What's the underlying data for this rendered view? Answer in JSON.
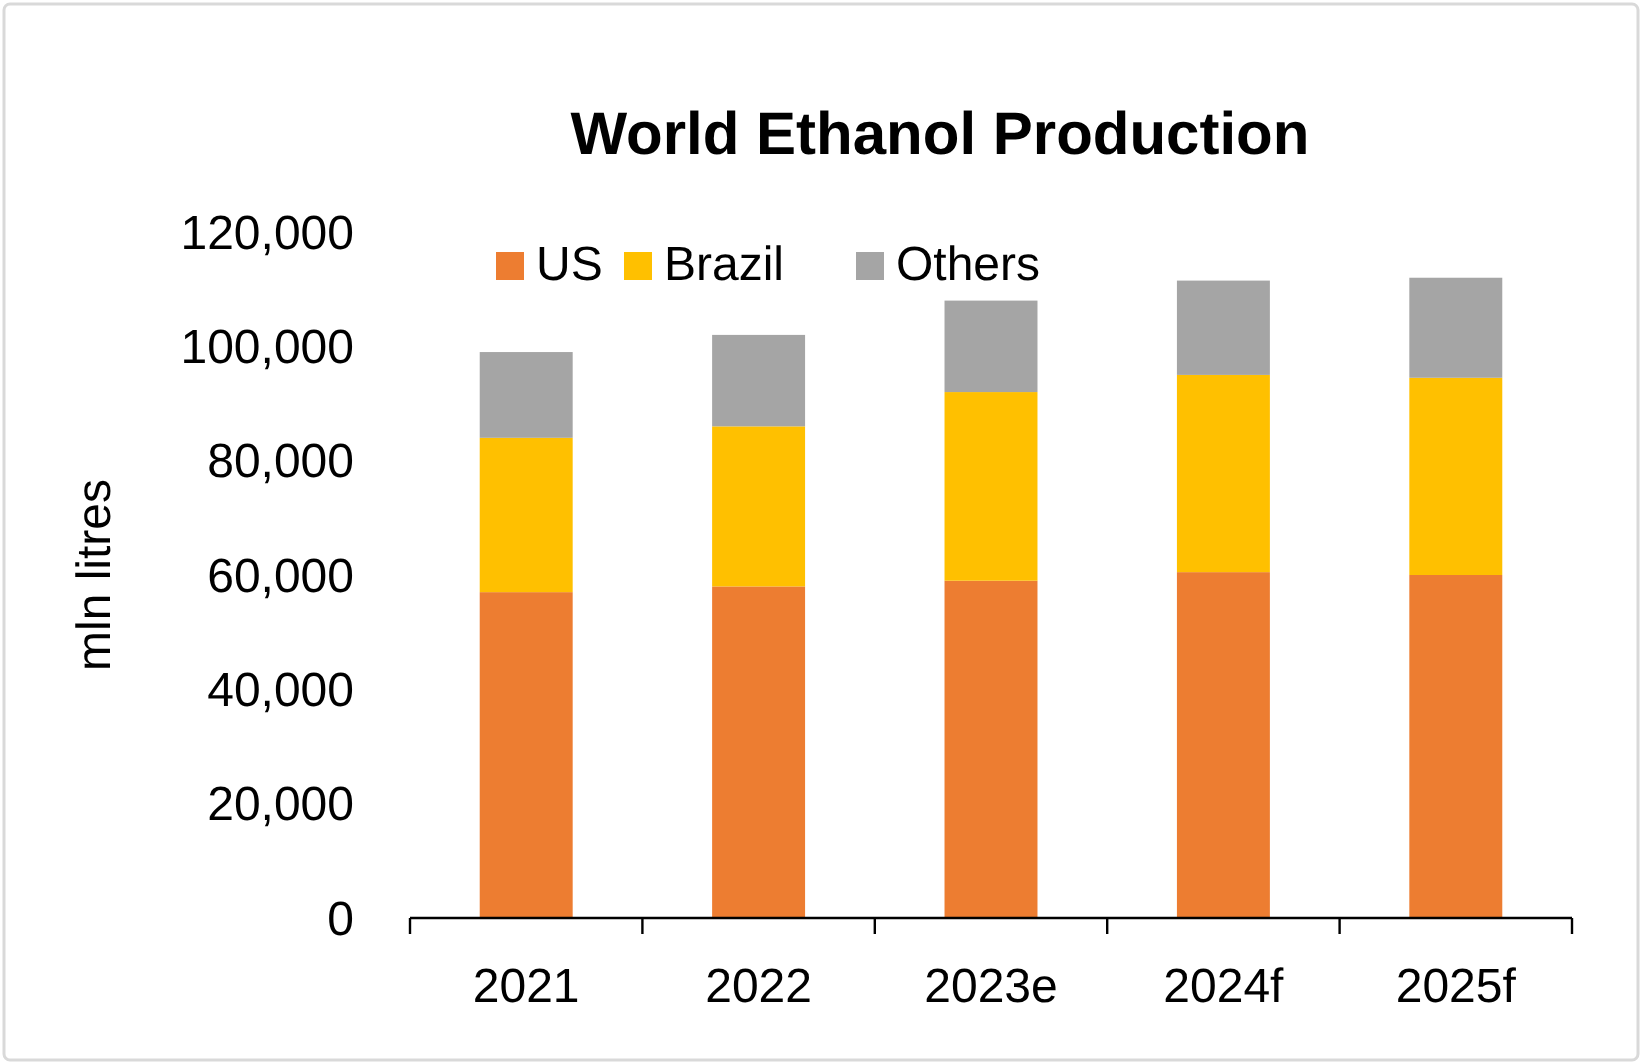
{
  "chart_data": {
    "type": "bar",
    "title": "World Ethanol Production",
    "ylabel": "mln litres",
    "categories": [
      "2021",
      "2022",
      "2023e",
      "2024f",
      "2025f"
    ],
    "stacked": true,
    "series": [
      {
        "name": "US",
        "color": "#ed7d31",
        "values": [
          57000,
          58000,
          59000,
          60500,
          60000
        ]
      },
      {
        "name": "Brazil",
        "color": "#ffc000",
        "values": [
          27000,
          28000,
          33000,
          34500,
          34500
        ]
      },
      {
        "name": "Others",
        "color": "#a5a5a5",
        "values": [
          15000,
          16000,
          16000,
          16500,
          17500
        ]
      }
    ],
    "ylim": [
      0,
      120000
    ],
    "yticks": [
      {
        "value": 0,
        "label": "0"
      },
      {
        "value": 20000,
        "label": "20,000"
      },
      {
        "value": 40000,
        "label": "40,000"
      },
      {
        "value": 60000,
        "label": "60,000"
      },
      {
        "value": 80000,
        "label": "80,000"
      },
      {
        "value": 100000,
        "label": "100,000"
      },
      {
        "value": 120000,
        "label": "120,000"
      }
    ],
    "grid": false,
    "legend": "top left"
  }
}
